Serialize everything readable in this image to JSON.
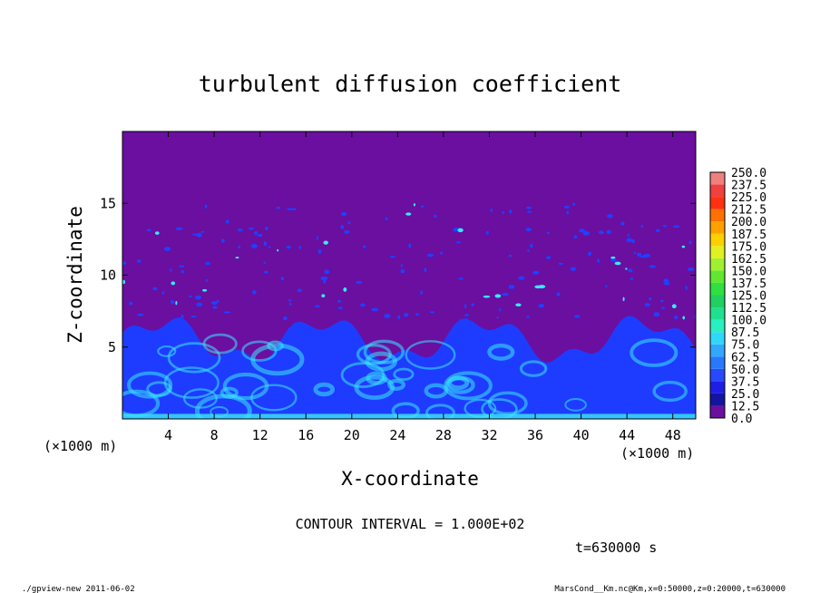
{
  "chart_data": {
    "type": "heatmap",
    "title": "turbulent diffusion coefficient",
    "xlabel": "X-coordinate",
    "ylabel": "Z-coordinate",
    "x_unit_left": "(×1000 m)",
    "x_unit_right": "(×1000 m)",
    "xlim": [
      0,
      50
    ],
    "ylim": [
      0,
      20
    ],
    "x_ticks": [
      4,
      8,
      12,
      16,
      20,
      24,
      28,
      32,
      36,
      40,
      44,
      48
    ],
    "y_ticks": [
      5,
      10,
      15
    ],
    "colorbar": {
      "levels": [
        "250.0",
        "237.5",
        "225.0",
        "212.5",
        "200.0",
        "187.5",
        "175.0",
        "162.5",
        "150.0",
        "137.5",
        "125.0",
        "112.5",
        "100.0",
        "87.5",
        "75.0",
        "62.5",
        "50.0",
        "37.5",
        "25.0",
        "12.5",
        "0.0"
      ],
      "colors_bottom_to_top": [
        "#6a0fa0",
        "#1414a0",
        "#1e1ee6",
        "#2848ff",
        "#2878ff",
        "#30a8ff",
        "#30d8f8",
        "#28f0c0",
        "#20e090",
        "#20d060",
        "#30e040",
        "#60e830",
        "#a0f030",
        "#e0f020",
        "#ffd000",
        "#ffa000",
        "#ff7000",
        "#ff3010",
        "#f04040",
        "#f08080"
      ]
    },
    "contour_interval": "CONTOUR INTERVAL = 1.000E+02",
    "time_label": "t=630000 s",
    "background_color": "#6a0fa0",
    "field_color": "#1e3cff",
    "highlight_color": "#38e8ff",
    "turbulent_layer_top_km": 7
  },
  "footer": {
    "left": "./gpview-new  2011-06-02",
    "right": "MarsCond__Km.nc@Km,x=0:50000,z=0:20000,t=630000"
  }
}
